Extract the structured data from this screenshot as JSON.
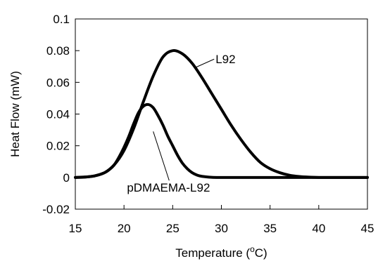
{
  "chart_data": {
    "type": "line",
    "xlabel": "Temperature (",
    "xlabel_sup": "o",
    "xlabel_end": "C)",
    "ylabel": "Heat Flow (mW)",
    "xlim": [
      15,
      45
    ],
    "ylim": [
      -0.02,
      0.1
    ],
    "x_ticks": [
      "15",
      "20",
      "25",
      "30",
      "35",
      "40",
      "45"
    ],
    "y_ticks": [
      "-0.02",
      "0",
      "0.02",
      "0.04",
      "0.06",
      "0.08",
      "0.1"
    ],
    "grid": false,
    "series": [
      {
        "name": "L92",
        "x": [
          15,
          16,
          17,
          18,
          19,
          20,
          21,
          22,
          23,
          24,
          25,
          26,
          27,
          28,
          29,
          30,
          31,
          32,
          33,
          34,
          35,
          36,
          37,
          38,
          39,
          40,
          41,
          42,
          43,
          44,
          45
        ],
        "y": [
          0,
          0.0003,
          0.001,
          0.003,
          0.008,
          0.017,
          0.031,
          0.048,
          0.064,
          0.076,
          0.08,
          0.078,
          0.072,
          0.063,
          0.053,
          0.043,
          0.033,
          0.024,
          0.016,
          0.0095,
          0.0055,
          0.003,
          0.0014,
          0.0006,
          0.0002,
          0,
          0,
          0,
          0,
          0,
          0
        ]
      },
      {
        "name": "pDMAEMA-L92",
        "x": [
          15,
          16,
          17,
          18,
          18.5,
          19,
          19.5,
          20,
          20.5,
          21,
          21.5,
          22,
          22.5,
          23,
          23.5,
          24,
          24.5,
          25,
          25.5,
          26,
          26.5,
          27,
          27.5,
          28,
          29,
          30,
          31,
          32,
          45
        ],
        "y": [
          0,
          0.0002,
          0.001,
          0.003,
          0.005,
          0.008,
          0.013,
          0.019,
          0.026,
          0.034,
          0.041,
          0.045,
          0.046,
          0.044,
          0.039,
          0.033,
          0.026,
          0.02,
          0.014,
          0.009,
          0.0055,
          0.003,
          0.0015,
          0.0007,
          0.0001,
          0,
          0,
          0,
          0
        ]
      }
    ],
    "annotations": [
      {
        "text": "L92",
        "x": 29.4,
        "y": 0.072,
        "pointer": [
          27.2,
          0.069
        ]
      },
      {
        "text": "pDMAEMA-L92",
        "x": 20.3,
        "y": -0.009,
        "pointer": [
          23.0,
          0.029
        ]
      }
    ]
  }
}
